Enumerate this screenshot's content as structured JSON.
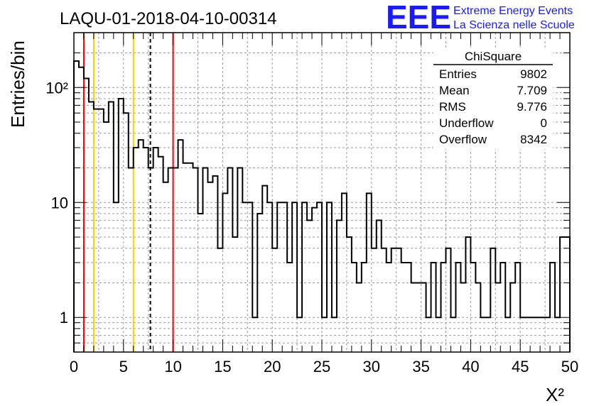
{
  "header": {
    "title": "LAQU-01-2018-04-10-00314",
    "logo_text": "EEE",
    "logo_line1": "Extreme Energy Events",
    "logo_line2": "La Scienza nelle Scuole",
    "logo_color": "#1a1aff"
  },
  "stats": {
    "title": "ChiSquare",
    "rows": [
      {
        "label": "Entries",
        "value": "9802"
      },
      {
        "label": "Mean",
        "value": "7.709"
      },
      {
        "label": "RMS",
        "value": "9.776"
      },
      {
        "label": "Underflow",
        "value": "0"
      },
      {
        "label": "Overflow",
        "value": "8342"
      }
    ]
  },
  "chart_data": {
    "type": "histogram",
    "title": "LAQU-01-2018-04-10-00314",
    "xlabel": "X²",
    "ylabel": "Entries/bin",
    "xlim": [
      0,
      50
    ],
    "ylim": [
      0.5,
      300
    ],
    "yscale": "log",
    "grid": true,
    "bin_width": 0.5,
    "x_ticks": [
      "0",
      "5",
      "10",
      "15",
      "20",
      "25",
      "30",
      "35",
      "40",
      "45",
      "50"
    ],
    "y_ticks": [
      "1",
      "10",
      "10²"
    ],
    "counts": [
      170,
      150,
      120,
      75,
      65,
      65,
      50,
      75,
      10,
      80,
      60,
      20,
      30,
      35,
      30,
      20,
      30,
      25,
      15,
      20,
      20,
      35,
      22,
      22,
      20,
      8,
      20,
      15,
      17,
      4,
      12,
      20,
      5,
      20,
      10,
      10,
      1,
      8,
      14,
      10,
      4,
      10,
      10,
      3,
      10,
      1,
      10,
      7,
      9,
      10,
      1,
      10,
      1,
      7,
      12,
      5,
      3,
      2,
      3,
      12,
      4,
      7,
      4,
      3,
      4,
      4,
      3,
      3,
      2,
      2,
      2,
      1,
      3,
      1,
      3,
      4,
      1,
      3,
      2,
      5,
      3,
      2,
      1,
      1,
      4,
      2,
      3,
      1,
      2,
      3,
      1,
      1,
      1,
      1,
      1,
      1,
      3,
      1,
      5,
      5
    ],
    "vlines": [
      {
        "x": 1,
        "color": "#ff0000",
        "style": "solid"
      },
      {
        "x": 2,
        "color": "#ffcc00",
        "style": "solid"
      },
      {
        "x": 6,
        "color": "#ffcc00",
        "style": "solid"
      },
      {
        "x": 7.709,
        "color": "#000000",
        "style": "dashed"
      },
      {
        "x": 10,
        "color": "#ff0000",
        "style": "solid"
      }
    ]
  }
}
